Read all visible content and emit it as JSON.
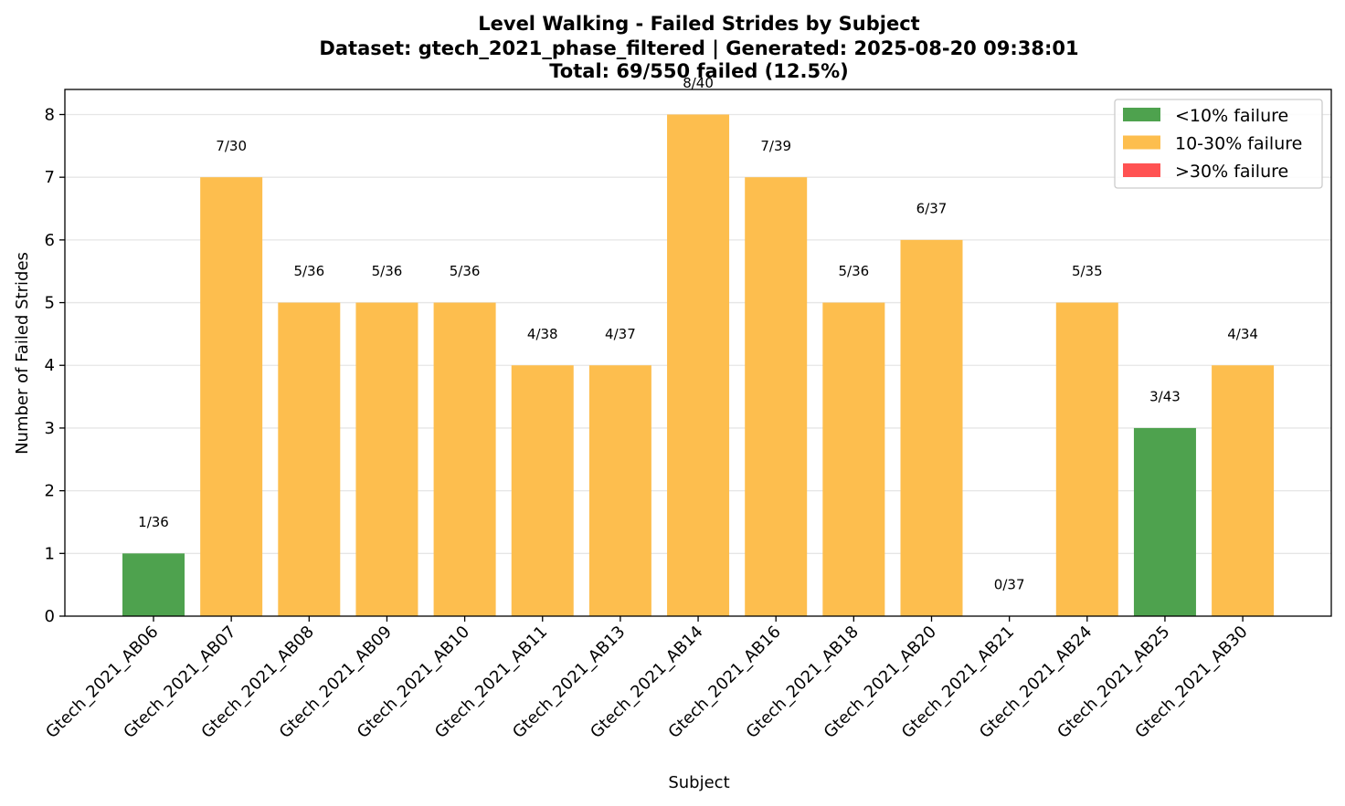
{
  "chart_data": {
    "type": "bar",
    "title": [
      "Level Walking - Failed Strides by Subject",
      "Dataset: gtech_2021_phase_filtered | Generated: 2025-08-20 09:38:01",
      "Total: 69/550 failed (12.5%)"
    ],
    "xlabel": "Subject",
    "ylabel": "Number of Failed Strides",
    "ylim": [
      0,
      8.4
    ],
    "yticks": [
      0,
      1,
      2,
      3,
      4,
      5,
      6,
      7,
      8
    ],
    "grid": "y",
    "legend_placement": "top-right",
    "categories": [
      "Gtech_2021_AB06",
      "Gtech_2021_AB07",
      "Gtech_2021_AB08",
      "Gtech_2021_AB09",
      "Gtech_2021_AB10",
      "Gtech_2021_AB11",
      "Gtech_2021_AB13",
      "Gtech_2021_AB14",
      "Gtech_2021_AB16",
      "Gtech_2021_AB18",
      "Gtech_2021_AB20",
      "Gtech_2021_AB21",
      "Gtech_2021_AB24",
      "Gtech_2021_AB25",
      "Gtech_2021_AB30"
    ],
    "values": [
      1,
      7,
      5,
      5,
      5,
      4,
      4,
      8,
      7,
      5,
      6,
      0,
      5,
      3,
      4
    ],
    "bar_labels": [
      "1/36",
      "7/30",
      "5/36",
      "5/36",
      "5/36",
      "4/38",
      "4/37",
      "8/40",
      "7/39",
      "5/36",
      "6/37",
      "0/37",
      "5/35",
      "3/43",
      "4/34"
    ],
    "bar_classes": [
      "low",
      "mid",
      "mid",
      "mid",
      "mid",
      "mid",
      "mid",
      "mid",
      "mid",
      "mid",
      "mid",
      "low",
      "mid",
      "low",
      "mid"
    ],
    "legend": [
      {
        "key": "low",
        "label": "<10% failure",
        "color": "#4ea24e"
      },
      {
        "key": "mid",
        "label": "10-30% failure",
        "color": "#fdbe4e"
      },
      {
        "key": "high",
        "label": ">30% failure",
        "color": "#ff5252"
      }
    ]
  }
}
